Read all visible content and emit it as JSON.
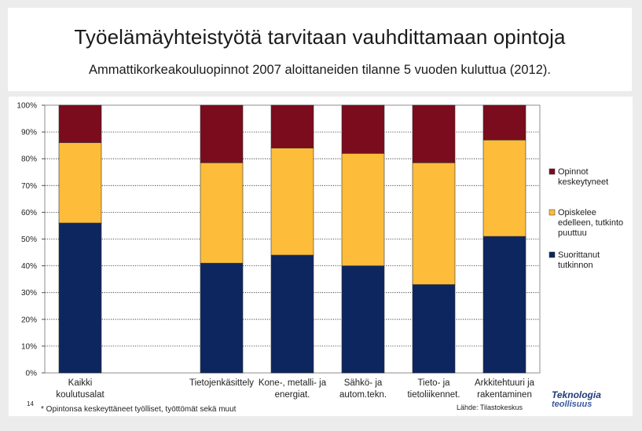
{
  "slide": {
    "title": "Työelämäyhteistyötä tarvitaan vauhdittamaan opintoja",
    "subtitle": "Ammattikorkeakouluopinnot 2007 aloittaneiden tilanne 5 vuoden kuluttua (2012).",
    "footnote": "* Opintonsa keskeyttäneet työlliset, työttömät sekä muut",
    "page_number": "14",
    "source": "Lähde: Tilastokeskus",
    "logo_line1": "Teknologia",
    "logo_line2": "teollisuus"
  },
  "chart_data": {
    "type": "bar",
    "stacked": true,
    "percent_stacked": true,
    "categories": [
      [
        "Kaikki",
        "koulutusalat"
      ],
      [
        "",
        ""
      ],
      [
        "Tietojenkäsittely",
        ""
      ],
      [
        "Kone-, metalli- ja",
        "energiat."
      ],
      [
        "Sähkö- ja",
        "autom.tekn."
      ],
      [
        "Tieto- ja",
        "tietoliikennet."
      ],
      [
        "Arkkitehtuuri ja",
        "rakentaminen"
      ]
    ],
    "series": [
      {
        "name": [
          "Suorittanut",
          "tutkinnon"
        ],
        "color": "#0d2660",
        "values": [
          56,
          null,
          41,
          44,
          40,
          33,
          51
        ]
      },
      {
        "name": [
          "Opiskelee",
          "edelleen, tutkinto",
          "puuttuu"
        ],
        "color": "#fdbd3a",
        "values": [
          30,
          null,
          37.5,
          40,
          42,
          45.5,
          36
        ]
      },
      {
        "name": [
          "Opinnot",
          "keskeytyneet"
        ],
        "color": "#7b0c1d",
        "values": [
          14,
          null,
          21.5,
          16,
          18,
          21.5,
          13
        ]
      }
    ],
    "ylim": [
      0,
      100
    ],
    "yticks": [
      "0%",
      "10%",
      "20%",
      "30%",
      "40%",
      "50%",
      "60%",
      "70%",
      "80%",
      "90%",
      "100%"
    ],
    "grid": true,
    "legend": "right",
    "title": "",
    "xlabel": "",
    "ylabel": ""
  }
}
